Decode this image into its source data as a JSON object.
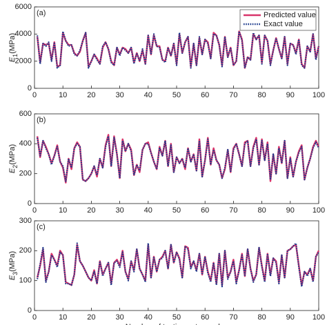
{
  "chart_data": [
    {
      "type": "line",
      "title": "(a)",
      "ylabel": [
        "E",
        "1",
        "(MPa)"
      ],
      "legend": "upper right",
      "xlim": [
        0,
        100
      ],
      "ylim": [
        0,
        6000
      ],
      "xticks": [
        0,
        10,
        20,
        30,
        40,
        50,
        60,
        70,
        80,
        90,
        100
      ],
      "yticks": [
        0,
        2000,
        4000,
        6000
      ],
      "x": [
        1,
        2,
        3,
        4,
        5,
        6,
        7,
        8,
        9,
        10,
        11,
        12,
        13,
        14,
        15,
        16,
        17,
        18,
        19,
        20,
        21,
        22,
        23,
        24,
        25,
        26,
        27,
        28,
        29,
        30,
        31,
        32,
        33,
        34,
        35,
        36,
        37,
        38,
        39,
        40,
        41,
        42,
        43,
        44,
        45,
        46,
        47,
        48,
        49,
        50,
        51,
        52,
        53,
        54,
        55,
        56,
        57,
        58,
        59,
        60,
        61,
        62,
        63,
        64,
        65,
        66,
        67,
        68,
        69,
        70,
        71,
        72,
        73,
        74,
        75,
        76,
        77,
        78,
        79,
        80,
        81,
        82,
        83,
        84,
        85,
        86,
        87,
        88,
        89,
        90,
        91,
        92,
        93,
        94,
        95,
        96,
        97,
        98,
        99,
        100
      ],
      "series": [
        {
          "name": "Predicted value",
          "color": "#d8336a",
          "style": "solid",
          "values": [
            3800,
            1900,
            3300,
            3200,
            3300,
            2100,
            3400,
            1600,
            1700,
            4100,
            3500,
            3200,
            3200,
            2600,
            2400,
            2700,
            3500,
            4100,
            1600,
            2000,
            2500,
            2200,
            1800,
            3000,
            3400,
            2900,
            2000,
            1700,
            3000,
            2500,
            3000,
            2900,
            2600,
            3000,
            1900,
            2600,
            2000,
            2800,
            1800,
            3900,
            2500,
            3900,
            3100,
            3100,
            2100,
            2000,
            3000,
            2400,
            3300,
            1800,
            4000,
            2600,
            3400,
            3800,
            1600,
            3300,
            1700,
            3700,
            2500,
            3600,
            3400,
            2200,
            4100,
            3900,
            3200,
            1700,
            3800,
            2300,
            3000,
            1700,
            2000,
            4200,
            3600,
            1500,
            2300,
            2100,
            4000,
            3600,
            3900,
            1900,
            3900,
            3500,
            1800,
            2800,
            3700,
            2900,
            2200,
            3800,
            1800,
            3300,
            3200,
            2600,
            3600,
            1800,
            1500,
            3100,
            2700,
            4000,
            2200,
            3100
          ]
        },
        {
          "name": "Exact value",
          "color": "#1c3a8c",
          "style": "dotted",
          "values": [
            3900,
            1800,
            3300,
            3100,
            3400,
            2000,
            3400,
            1500,
            1700,
            4200,
            3500,
            3100,
            3200,
            2500,
            2400,
            2800,
            3500,
            4100,
            1500,
            2000,
            2500,
            2100,
            1800,
            3100,
            3400,
            2900,
            1900,
            1700,
            3000,
            2400,
            3000,
            2800,
            2600,
            3000,
            1800,
            2600,
            2000,
            2900,
            1800,
            3900,
            2500,
            4000,
            3100,
            3000,
            2100,
            1900,
            3000,
            2400,
            3300,
            1700,
            4100,
            2600,
            3400,
            3800,
            1500,
            3300,
            1700,
            3800,
            2500,
            3600,
            3300,
            2200,
            4000,
            3900,
            3200,
            1600,
            3800,
            2300,
            3000,
            1700,
            2000,
            4200,
            3500,
            1500,
            2300,
            2100,
            4100,
            3600,
            3900,
            1800,
            3900,
            3500,
            1700,
            2800,
            3700,
            2900,
            2200,
            3800,
            1700,
            3300,
            3200,
            2500,
            3600,
            1700,
            1500,
            3100,
            2700,
            4000,
            2100,
            3100
          ]
        }
      ]
    },
    {
      "type": "line",
      "title": "(b)",
      "ylabel": [
        "E",
        "2",
        "(MPa)"
      ],
      "xlim": [
        0,
        100
      ],
      "ylim": [
        0,
        600
      ],
      "xticks": [
        0,
        10,
        20,
        30,
        40,
        50,
        60,
        70,
        80,
        90,
        100
      ],
      "yticks": [
        0,
        200,
        400,
        600
      ],
      "x": [
        1,
        2,
        3,
        4,
        5,
        6,
        7,
        8,
        9,
        10,
        11,
        12,
        13,
        14,
        15,
        16,
        17,
        18,
        19,
        20,
        21,
        22,
        23,
        24,
        25,
        26,
        27,
        28,
        29,
        30,
        31,
        32,
        33,
        34,
        35,
        36,
        37,
        38,
        39,
        40,
        41,
        42,
        43,
        44,
        45,
        46,
        47,
        48,
        49,
        50,
        51,
        52,
        53,
        54,
        55,
        56,
        57,
        58,
        59,
        60,
        61,
        62,
        63,
        64,
        65,
        66,
        67,
        68,
        69,
        70,
        71,
        72,
        73,
        74,
        75,
        76,
        77,
        78,
        79,
        80,
        81,
        82,
        83,
        84,
        85,
        86,
        87,
        88,
        89,
        90,
        91,
        92,
        93,
        94,
        95,
        96,
        97,
        98,
        99,
        100
      ],
      "series": [
        {
          "color": "#d8336a",
          "style": "solid",
          "values": [
            450,
            310,
            420,
            380,
            330,
            270,
            320,
            390,
            280,
            240,
            140,
            300,
            230,
            370,
            410,
            380,
            160,
            150,
            170,
            200,
            250,
            180,
            300,
            240,
            390,
            460,
            250,
            450,
            330,
            170,
            430,
            350,
            400,
            360,
            190,
            260,
            210,
            360,
            400,
            410,
            340,
            280,
            230,
            380,
            320,
            420,
            250,
            400,
            210,
            310,
            270,
            300,
            230,
            370,
            280,
            330,
            220,
            430,
            180,
            290,
            440,
            260,
            370,
            290,
            260,
            170,
            230,
            360,
            210,
            370,
            400,
            330,
            250,
            410,
            420,
            250,
            380,
            440,
            260,
            430,
            290,
            410,
            150,
            330,
            200,
            380,
            270,
            420,
            170,
            310,
            180,
            280,
            350,
            390,
            160,
            240,
            300,
            380,
            420,
            380
          ]
        },
        {
          "color": "#1c3a8c",
          "style": "dotted",
          "values": [
            440,
            320,
            420,
            370,
            330,
            260,
            320,
            380,
            280,
            250,
            150,
            300,
            240,
            370,
            400,
            380,
            160,
            150,
            170,
            200,
            250,
            190,
            300,
            240,
            380,
            450,
            250,
            440,
            330,
            170,
            420,
            350,
            400,
            350,
            190,
            260,
            220,
            360,
            400,
            400,
            340,
            280,
            230,
            370,
            320,
            420,
            250,
            390,
            210,
            310,
            270,
            300,
            240,
            370,
            280,
            330,
            220,
            420,
            180,
            290,
            430,
            260,
            360,
            290,
            260,
            170,
            240,
            360,
            210,
            360,
            400,
            330,
            250,
            400,
            420,
            250,
            370,
            430,
            260,
            420,
            290,
            400,
            160,
            330,
            200,
            370,
            270,
            420,
            170,
            300,
            180,
            280,
            340,
            380,
            160,
            240,
            300,
            370,
            410,
            370
          ]
        }
      ]
    },
    {
      "type": "line",
      "title": "(c)",
      "ylabel": [
        "E",
        "3",
        "(MPa)"
      ],
      "xlabel": "Number of testing set samples",
      "xlim": [
        0,
        100
      ],
      "ylim": [
        0,
        300
      ],
      "xticks": [
        0,
        10,
        20,
        30,
        40,
        50,
        60,
        70,
        80,
        90,
        100
      ],
      "yticks": [
        0,
        100,
        200,
        300
      ],
      "x": [
        1,
        2,
        3,
        4,
        5,
        6,
        7,
        8,
        9,
        10,
        11,
        12,
        13,
        14,
        15,
        16,
        17,
        18,
        19,
        20,
        21,
        22,
        23,
        24,
        25,
        26,
        27,
        28,
        29,
        30,
        31,
        32,
        33,
        34,
        35,
        36,
        37,
        38,
        39,
        40,
        41,
        42,
        43,
        44,
        45,
        46,
        47,
        48,
        49,
        50,
        51,
        52,
        53,
        54,
        55,
        56,
        57,
        58,
        59,
        60,
        61,
        62,
        63,
        64,
        65,
        66,
        67,
        68,
        69,
        70,
        71,
        72,
        73,
        74,
        75,
        76,
        77,
        78,
        79,
        80,
        81,
        82,
        83,
        84,
        85,
        86,
        87,
        88,
        89,
        90,
        91,
        92,
        93,
        94,
        95,
        96,
        97,
        98,
        99,
        100
      ],
      "series": [
        {
          "color": "#d8336a",
          "style": "solid",
          "values": [
            110,
            150,
            205,
            100,
            130,
            190,
            170,
            150,
            200,
            185,
            95,
            90,
            85,
            120,
            220,
            165,
            150,
            130,
            110,
            100,
            135,
            90,
            165,
            120,
            140,
            160,
            90,
            160,
            170,
            150,
            200,
            130,
            105,
            165,
            135,
            205,
            140,
            120,
            100,
            220,
            110,
            180,
            130,
            170,
            180,
            200,
            140,
            220,
            160,
            195,
            175,
            110,
            215,
            210,
            145,
            165,
            135,
            190,
            120,
            180,
            130,
            100,
            160,
            90,
            190,
            85,
            200,
            110,
            130,
            170,
            95,
            135,
            190,
            115,
            205,
            140,
            100,
            120,
            210,
            150,
            100,
            190,
            120,
            175,
            165,
            95,
            185,
            110,
            200,
            205,
            215,
            220,
            150,
            85,
            130,
            120,
            140,
            100,
            180,
            200
          ]
        },
        {
          "color": "#1c3a8c",
          "style": "dotted",
          "values": [
            105,
            155,
            210,
            95,
            130,
            185,
            170,
            145,
            195,
            185,
            90,
            90,
            85,
            120,
            225,
            165,
            150,
            130,
            110,
            100,
            130,
            90,
            165,
            115,
            140,
            160,
            85,
            160,
            165,
            145,
            195,
            130,
            100,
            165,
            130,
            205,
            140,
            120,
            95,
            225,
            110,
            180,
            130,
            170,
            175,
            200,
            140,
            220,
            160,
            195,
            170,
            110,
            215,
            205,
            140,
            165,
            130,
            190,
            120,
            180,
            125,
            95,
            160,
            85,
            190,
            80,
            200,
            105,
            130,
            165,
            90,
            135,
            185,
            115,
            205,
            140,
            95,
            120,
            210,
            145,
            95,
            190,
            115,
            175,
            160,
            90,
            185,
            110,
            200,
            205,
            215,
            225,
            145,
            80,
            130,
            115,
            140,
            95,
            180,
            195
          ]
        }
      ]
    }
  ]
}
